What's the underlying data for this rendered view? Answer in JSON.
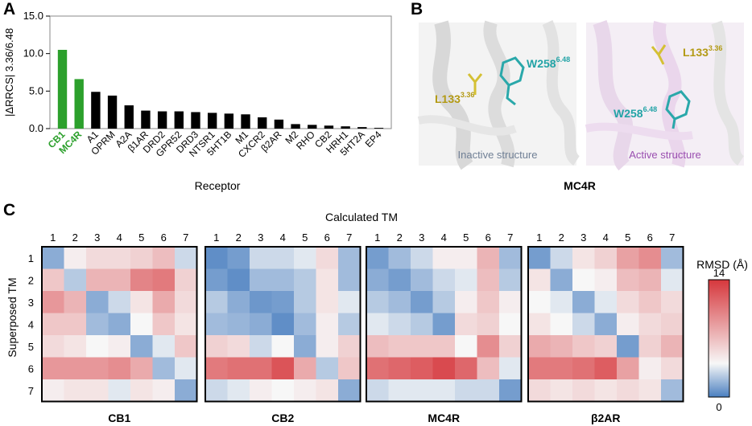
{
  "panel_labels": {
    "a": "A",
    "b": "B",
    "c": "C"
  },
  "chart_data": [
    {
      "type": "bar",
      "title": "",
      "xlabel": "Receptor",
      "ylabel": "|ΔRRCS| 3.36/6.48",
      "ylim": [
        0,
        15
      ],
      "yticks": [
        "0.0",
        "5.0",
        "10.0",
        "15.0"
      ],
      "ytick_values": [
        0,
        5,
        10,
        15
      ],
      "categories": [
        "CB1",
        "MC4R",
        "A1",
        "OPRM",
        "A2A",
        "β1AR",
        "DRD2",
        "GPR52",
        "DRD3",
        "NTSR1",
        "5HT1B",
        "M1",
        "CXCR2",
        "β2AR",
        "M2",
        "RHO",
        "CB2",
        "HRH1",
        "5HT2A",
        "EP4"
      ],
      "values": [
        10.5,
        6.6,
        4.9,
        4.4,
        3.1,
        2.4,
        2.3,
        2.3,
        2.2,
        2.1,
        2.0,
        1.9,
        1.5,
        1.2,
        0.6,
        0.5,
        0.4,
        0.3,
        0.2,
        0.1
      ],
      "highlight_color": "#2ca02c",
      "highlight_categories": [
        "CB1",
        "MC4R"
      ],
      "bar_color": "#000000",
      "grid": false
    },
    {
      "type": "heatmap",
      "title": "Calculated TM",
      "xlabel": "Calculated TM",
      "ylabel": "Superposed TM",
      "x_ticks": [
        "1",
        "2",
        "3",
        "4",
        "5",
        "6",
        "7"
      ],
      "y_ticks": [
        "1",
        "2",
        "3",
        "4",
        "5",
        "6",
        "7"
      ],
      "colorbar_label": "RMSD (Å)",
      "colorbar_min_label": "0",
      "colorbar_max_label": "14",
      "vmin": 0,
      "vmax": 14,
      "vcenter": 4,
      "colors": {
        "low": "#4a7fc0",
        "mid": "#f7f7f7",
        "high": "#d6373c"
      },
      "panels": [
        {
          "name": "CB1",
          "values": [
            [
              1.5,
              4.5,
              5.5,
              5.5,
              6.0,
              7.0,
              3.0
            ],
            [
              6.5,
              2.5,
              7.5,
              7.5,
              10.0,
              10.5,
              6.0
            ],
            [
              9.0,
              7.5,
              1.5,
              3.0,
              5.0,
              8.0,
              5.5
            ],
            [
              6.5,
              6.5,
              2.0,
              1.5,
              4.0,
              6.5,
              5.0
            ],
            [
              5.5,
              5.0,
              4.0,
              4.5,
              1.5,
              3.5,
              6.5
            ],
            [
              9.0,
              9.0,
              9.0,
              9.5,
              8.0,
              2.0,
              3.5
            ],
            [
              4.5,
              5.0,
              5.0,
              3.5,
              5.0,
              4.5,
              1.5
            ]
          ]
        },
        {
          "name": "CB2",
          "values": [
            [
              0.5,
              1.0,
              3.0,
              3.0,
              3.5,
              5.5,
              2.0
            ],
            [
              1.0,
              0.5,
              2.0,
              2.0,
              2.5,
              5.0,
              2.0
            ],
            [
              2.5,
              1.5,
              0.8,
              1.0,
              2.5,
              5.0,
              3.5
            ],
            [
              2.0,
              1.8,
              1.5,
              0.5,
              2.0,
              4.5,
              2.5
            ],
            [
              6.0,
              5.5,
              3.0,
              4.0,
              1.5,
              4.5,
              6.0
            ],
            [
              10.5,
              11.0,
              11.0,
              12.5,
              8.0,
              2.5,
              6.5
            ],
            [
              3.0,
              3.5,
              4.5,
              4.0,
              4.5,
              5.0,
              1.5
            ]
          ]
        },
        {
          "name": "MC4R",
          "values": [
            [
              1.0,
              2.0,
              3.0,
              4.5,
              4.5,
              7.5,
              2.0
            ],
            [
              1.5,
              1.0,
              2.0,
              3.0,
              3.5,
              7.0,
              2.5
            ],
            [
              2.5,
              2.0,
              1.0,
              2.5,
              4.5,
              6.5,
              4.5
            ],
            [
              3.5,
              3.0,
              2.5,
              1.0,
              5.5,
              6.0,
              4.0
            ],
            [
              7.0,
              6.5,
              6.5,
              6.5,
              4.0,
              9.5,
              6.0
            ],
            [
              11.0,
              11.5,
              12.0,
              13.0,
              11.5,
              7.0,
              3.5
            ],
            [
              3.0,
              3.5,
              3.5,
              3.5,
              3.0,
              3.0,
              1.0
            ]
          ]
        },
        {
          "name": "β2AR",
          "values": [
            [
              1.0,
              3.0,
              5.0,
              6.0,
              8.5,
              9.5,
              2.0
            ],
            [
              5.0,
              1.5,
              4.0,
              4.5,
              7.0,
              7.5,
              3.5
            ],
            [
              4.0,
              3.5,
              1.5,
              3.5,
              5.5,
              6.5,
              5.5
            ],
            [
              5.0,
              4.0,
              3.0,
              1.5,
              4.5,
              5.5,
              6.0
            ],
            [
              8.0,
              7.5,
              6.5,
              6.0,
              1.0,
              6.0,
              7.5
            ],
            [
              10.5,
              10.5,
              11.0,
              12.0,
              8.5,
              4.5,
              5.5
            ],
            [
              5.5,
              5.0,
              5.5,
              5.0,
              5.5,
              5.0,
              2.0
            ]
          ]
        }
      ]
    }
  ],
  "panel_b": {
    "title": "MC4R",
    "inactive": {
      "caption": "Inactive structure",
      "res1": "L133",
      "res1_sup": "3.36",
      "res2": "W258",
      "res2_sup": "6.48"
    },
    "active": {
      "caption": "Active structure",
      "res1": "L133",
      "res1_sup": "3.36",
      "res2": "W258",
      "res2_sup": "6.48"
    },
    "colors": {
      "inactive_caption": "#6f7f95",
      "active_caption": "#9a4fb0",
      "leu": "#b39a14",
      "trp": "#22a3a6"
    }
  }
}
